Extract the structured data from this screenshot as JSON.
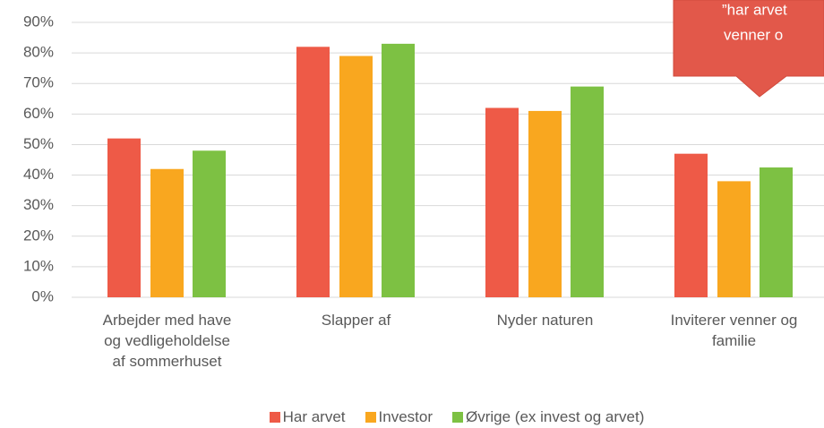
{
  "chart_data": {
    "type": "bar",
    "categories": [
      "Arbejder med have\nog vedligeholdelse\naf sommerhuset",
      "Slapper af",
      "Nyder naturen",
      "Inviterer venner og\nfamilie"
    ],
    "series": [
      {
        "name": "Har arvet",
        "color": "#ee5a47",
        "values": [
          52,
          82,
          62,
          47
        ]
      },
      {
        "name": "Investor",
        "color": "#f9a71f",
        "values": [
          42,
          79,
          61,
          38
        ]
      },
      {
        "name": "Øvrige (ex invest og arvet)",
        "color": "#7dc143",
        "values": [
          48,
          83,
          69,
          42.5
        ]
      }
    ],
    "ylim": [
      0,
      90
    ],
    "yticks": [
      {
        "value": 0,
        "label": "0%"
      },
      {
        "value": 10,
        "label": "10%"
      },
      {
        "value": 20,
        "label": "20%"
      },
      {
        "value": 30,
        "label": "30%"
      },
      {
        "value": 40,
        "label": "40%"
      },
      {
        "value": 50,
        "label": "50%"
      },
      {
        "value": 60,
        "label": "60%"
      },
      {
        "value": 70,
        "label": "70%"
      },
      {
        "value": 80,
        "label": "80%"
      },
      {
        "value": 90,
        "label": "90%"
      }
    ],
    "grid": true,
    "legend": "bottom",
    "annotation": [
      "”har arvet",
      "venner o"
    ]
  }
}
